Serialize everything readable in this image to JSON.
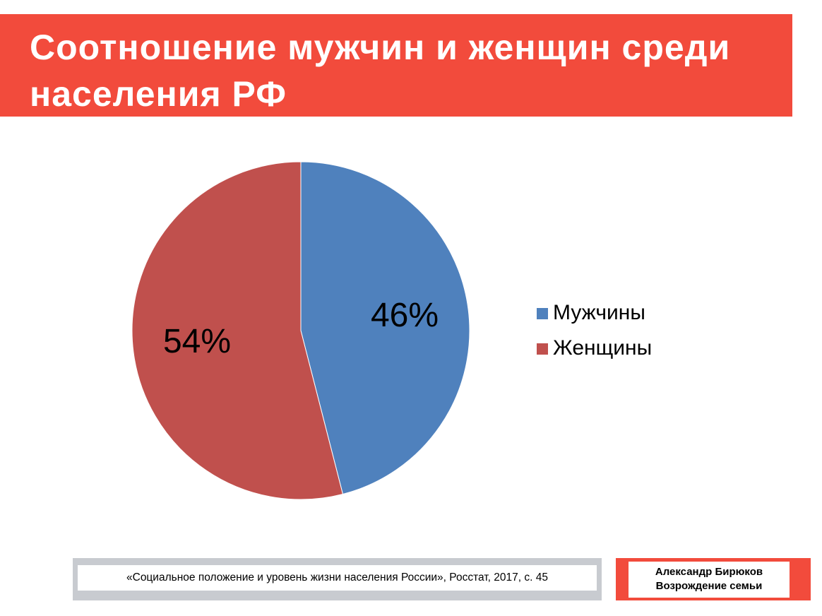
{
  "chart_data": {
    "type": "pie",
    "title": "Соотношение мужчин и женщин среди населения РФ",
    "categories": [
      "Мужчины",
      "Женщины"
    ],
    "values": [
      46,
      54
    ],
    "value_labels": [
      "46%",
      "54%"
    ],
    "colors": [
      "#4f81bd",
      "#c0504d"
    ],
    "legend": "right"
  },
  "footer": {
    "source": "«Социальное положение и уровень жизни населения России», Росстат, 2017, с. 45",
    "author": "Александр Бирюков",
    "project": "Возрождение семьи"
  }
}
